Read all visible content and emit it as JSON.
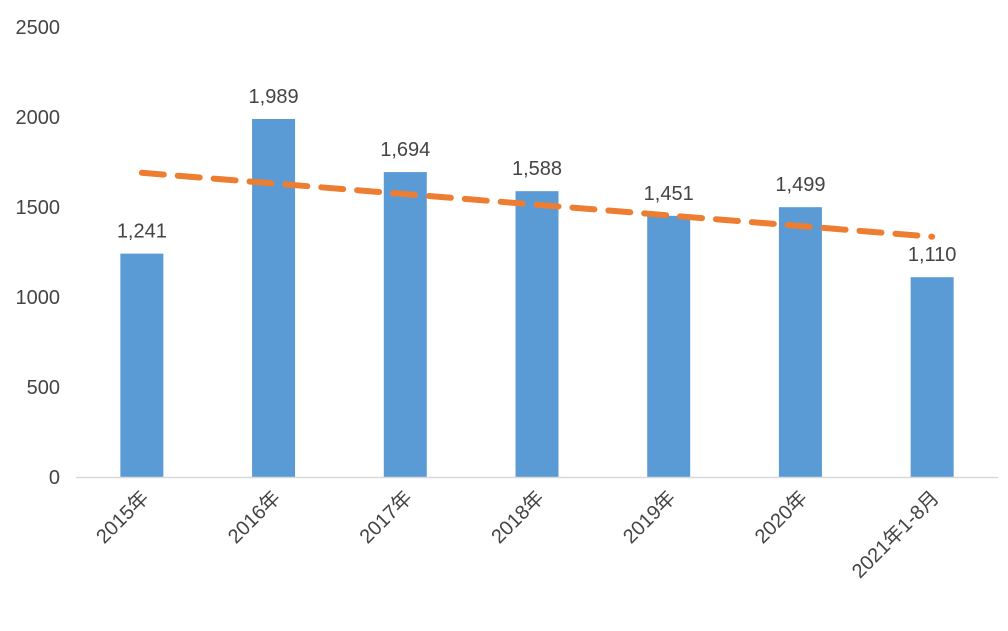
{
  "chart_data": {
    "type": "bar",
    "categories": [
      "2015年",
      "2016年",
      "2017年",
      "2018年",
      "2019年",
      "2020年",
      "2021年1-8月"
    ],
    "series": [
      {
        "values": [
          1241,
          1989,
          1694,
          1588,
          1451,
          1499,
          1110
        ],
        "data_labels": [
          "1,241",
          "1,989",
          "1,694",
          "1,588",
          "1,451",
          "1,499",
          "1,110"
        ],
        "color": "#5B9BD5"
      }
    ],
    "trendline": {
      "type": "linear",
      "style": "dashed",
      "color": "#ED7D31",
      "start_value": 1690,
      "end_value": 1335
    },
    "yticks": [
      "0",
      "500",
      "1000",
      "1500",
      "2000",
      "2500"
    ],
    "ylim": [
      0,
      2500
    ],
    "grid": false,
    "legend": "none",
    "title": "",
    "xlabel": "",
    "ylabel": ""
  },
  "colors": {
    "bar": "#5B9BD5",
    "trend": "#ED7D31",
    "axis": "#d9d9d9",
    "text": "#444444"
  }
}
